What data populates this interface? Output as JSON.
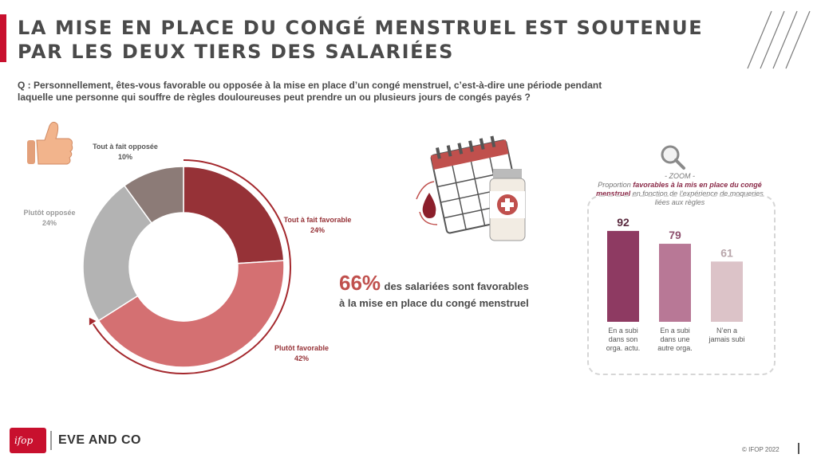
{
  "header": {
    "title": "LA MISE EN PLACE DU CONGÉ MENSTRUEL EST SOUTENUE PAR LES DEUX TIERS DES SALARIÉES"
  },
  "question": {
    "text": "Q : Personnellement, êtes-vous favorable ou opposée à la mise en place d’un congé menstruel, c’est-à-dire une période pendant laquelle une personne qui souffre de règles douloureuses peut prendre un ou plusieurs jours de congés payés ?"
  },
  "highlight": {
    "percent": "66%",
    "text_line1": "des salariées sont favorables",
    "text_line2": "à la mise en place du congé menstruel"
  },
  "zoom": {
    "label": "- ZOOM -",
    "line_prefix": "Proportion",
    "line_bold": "favorables à la mis en place du congé menstruel",
    "line_suffix": "en fonction de l’expérience de moqueries liées aux règles"
  },
  "footer": {
    "logo_text": "ifop",
    "brand": "EVE AND CO",
    "copyright": "© IFOP 2022"
  },
  "chart_data": [
    {
      "type": "pie",
      "title": "",
      "categories": [
        "Tout à fait favorable",
        "Plutôt favorable",
        "Plutôt opposée",
        "Tout à fait opposée"
      ],
      "values": [
        24,
        42,
        24,
        10
      ],
      "labels_text": [
        "24%",
        "42%",
        "24%",
        "10%"
      ],
      "colors": [
        "#963237",
        "#d47072",
        "#b3b3b3",
        "#8c7b77"
      ],
      "donut": true
    },
    {
      "type": "bar",
      "title": "",
      "categories": [
        "En a subi dans son orga. actu.",
        "En a subi dans une autre orga.",
        "N’en a jamais subi"
      ],
      "category_lines": [
        [
          "En a subi",
          "dans son",
          "orga. actu."
        ],
        [
          "En a subi",
          "dans une",
          "autre orga."
        ],
        [
          "N’en a",
          "jamais subi"
        ]
      ],
      "values": [
        92,
        79,
        61
      ],
      "colors": [
        "#8e3a62",
        "#b87896",
        "#dcc3c8"
      ],
      "value_colors": [
        "#5a2a3f",
        "#8e4f6e",
        "#b9a6ab"
      ],
      "ylim": [
        0,
        100
      ]
    }
  ],
  "colors": {
    "accent": "#c8102e",
    "arc": "#a4282d",
    "text": "#4a4a4a"
  }
}
